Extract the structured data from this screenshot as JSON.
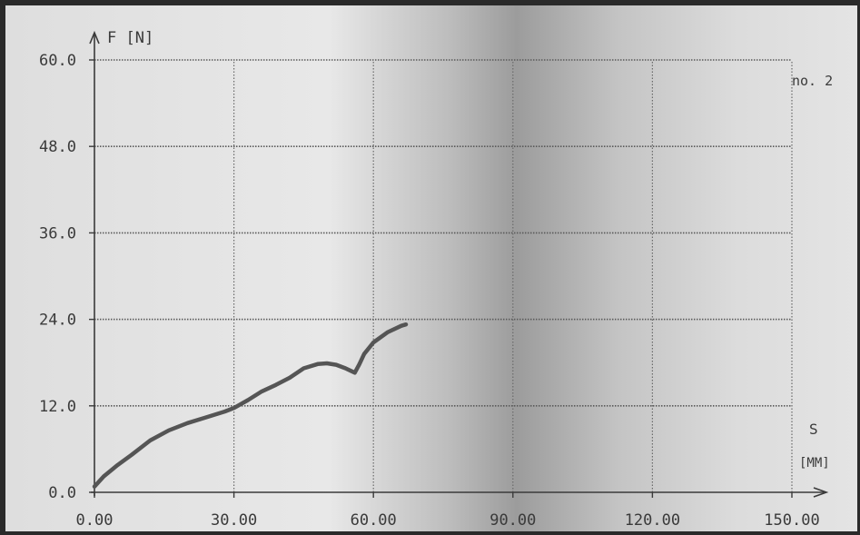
{
  "chart_data": {
    "type": "line",
    "title": "",
    "xlabel": "S [MM]",
    "xlabel_symbol": "S",
    "xlabel_unit": "[MM]",
    "ylabel": "F [N]",
    "annotation": "no. 2",
    "xlim": [
      0,
      150
    ],
    "ylim": [
      0,
      60
    ],
    "x_ticks": [
      "0.00",
      "30.00",
      "60.00",
      "90.00",
      "120.00",
      "150.00"
    ],
    "y_ticks": [
      "0.0",
      "12.0",
      "24.0",
      "36.0",
      "48.0",
      "60.0"
    ],
    "x_tick_values": [
      0,
      30,
      60,
      90,
      120,
      150
    ],
    "y_tick_values": [
      0,
      12,
      24,
      36,
      48,
      60
    ],
    "grid": true,
    "series": [
      {
        "x": [
          0,
          2,
          5,
          8,
          12,
          16,
          20,
          24,
          28,
          30,
          33,
          36,
          39,
          42,
          45,
          48,
          50,
          52,
          54,
          56,
          57,
          58,
          60,
          63,
          66,
          67
        ],
        "y": [
          0.8,
          2.2,
          3.8,
          5.2,
          7.2,
          8.6,
          9.6,
          10.4,
          11.2,
          11.7,
          12.8,
          14.0,
          14.9,
          15.9,
          17.2,
          17.8,
          17.9,
          17.7,
          17.2,
          16.6,
          17.8,
          19.2,
          20.8,
          22.2,
          23.1,
          23.3
        ]
      }
    ],
    "colors": {
      "paper": "#e4e4e4",
      "ink": "#3a3a3a",
      "line": "#555555"
    }
  }
}
